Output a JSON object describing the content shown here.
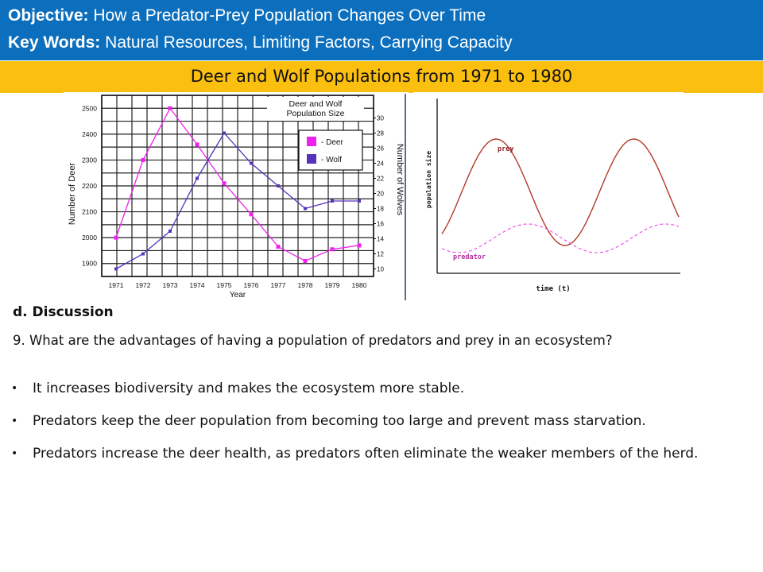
{
  "header": {
    "objective_label": "Objective:",
    "objective_text": "How a Predator-Prey Population Changes Over Time",
    "keywords_label": "Key Words:",
    "keywords_text": "Natural Resources, Limiting Factors, Carrying Capacity"
  },
  "banner": {
    "title": "Deer and Wolf Populations from 1971 to 1980"
  },
  "colors": {
    "header_bg": "#0c6fbd",
    "banner_bg": "#fbbf0f",
    "deer": "#ee22ee",
    "wolf": "#5533bb",
    "prey": "#b23a2a",
    "predator": "#ee44ee"
  },
  "chart_data": [
    {
      "type": "line",
      "title": "Deer and Wolf Population Size",
      "xlabel": "Year",
      "ylabel": "Number of Deer",
      "y2label": "Number of Wolves",
      "x": [
        1971,
        1972,
        1973,
        1974,
        1975,
        1976,
        1977,
        1978,
        1979,
        1980
      ],
      "ylim": [
        1850,
        2550
      ],
      "y_ticks": [
        "1900",
        "2000",
        "2100",
        "2200",
        "2300",
        "2400",
        "2500"
      ],
      "y2lim": [
        9,
        33
      ],
      "y2_ticks": [
        "10",
        "12",
        "14",
        "16",
        "18",
        "20",
        "22",
        "24",
        "26",
        "28",
        "30"
      ],
      "series": [
        {
          "name": "- Deer",
          "axis": "left",
          "values": [
            2000,
            2300,
            2500,
            2360,
            2210,
            2090,
            1965,
            1910,
            1955,
            1970
          ]
        },
        {
          "name": "- Wolf",
          "axis": "right",
          "values": [
            10,
            12,
            15,
            22,
            28,
            24,
            21,
            18,
            19,
            19
          ]
        }
      ],
      "legend": "top-right",
      "grid": true
    },
    {
      "type": "line",
      "ylabel": "population size",
      "xlabel": "time (t)",
      "series": [
        {
          "name": "prey"
        },
        {
          "name": "predator"
        }
      ],
      "grid": false
    }
  ],
  "discussion": {
    "title": "d. Discussion",
    "question": "9. What are the advantages of having a population of predators and prey in an ecosystem?",
    "bullet_char": "•",
    "points": [
      "It increases biodiversity and makes the ecosystem more stable.",
      "Predators keep the deer population from becoming too large and prevent mass starvation.",
      "Predators increase the deer health, as predators often eliminate the weaker members of the herd."
    ]
  }
}
